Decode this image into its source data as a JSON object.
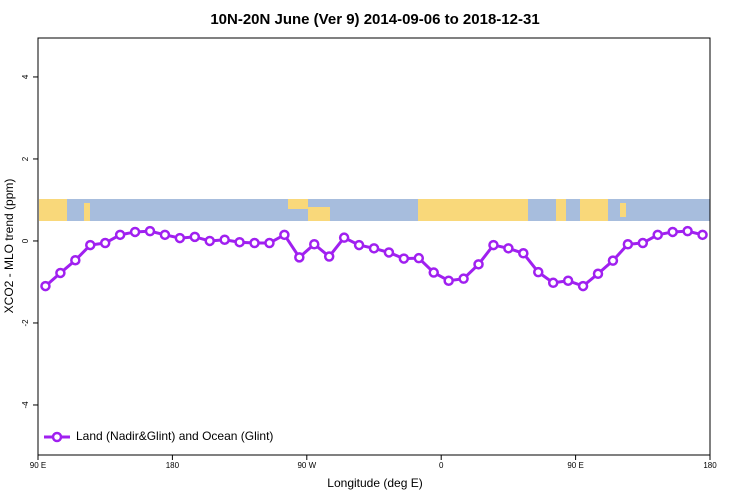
{
  "chart_data": {
    "type": "line",
    "title": "10N-20N June (Ver 9)   2014-09-06 to 2018-12-31",
    "xlabel": "Longitude (deg E)",
    "ylabel": "XCO2 - MLO trend (ppm)",
    "x": [
      95,
      105,
      115,
      125,
      135,
      145,
      155,
      165,
      175,
      185,
      195,
      205,
      215,
      225,
      235,
      245,
      255,
      265,
      275,
      285,
      295,
      305,
      315,
      325,
      335,
      345,
      355,
      365,
      375,
      385,
      395,
      405,
      415,
      425,
      435,
      445,
      455,
      465,
      475,
      485,
      495,
      505,
      515,
      525,
      535
    ],
    "series": [
      {
        "name": "Land (Nadir&Glint) and Ocean (Glint)",
        "color": "#a020f0",
        "values": [
          -1.1,
          -0.78,
          -0.47,
          -0.1,
          -0.05,
          0.15,
          0.22,
          0.24,
          0.15,
          0.07,
          0.1,
          0.0,
          0.03,
          -0.03,
          -0.05,
          -0.05,
          0.15,
          -0.4,
          -0.08,
          -0.38,
          0.08,
          -0.1,
          -0.18,
          -0.28,
          -0.43,
          -0.42,
          -0.77,
          -0.97,
          -0.92,
          -0.57,
          -0.1,
          -0.18,
          -0.3,
          -0.76,
          -1.02,
          -0.97,
          -1.1,
          -0.8,
          -0.48,
          -0.08,
          -0.05,
          0.15,
          0.22,
          0.24,
          0.15
        ]
      }
    ],
    "xlim": [
      90,
      540
    ],
    "xticks": [
      {
        "value": 90,
        "label": "90 E"
      },
      180,
      {
        "value": 270,
        "label": "90 W"
      },
      {
        "value": 360,
        "label": "0"
      },
      {
        "value": 450,
        "label": "90 E"
      },
      {
        "value": 540,
        "label": "180"
      }
    ],
    "ylim": [
      -5.22,
      4.95
    ],
    "yticks": [
      -4,
      -2,
      0,
      2,
      4
    ],
    "legend": "bottom-left"
  }
}
